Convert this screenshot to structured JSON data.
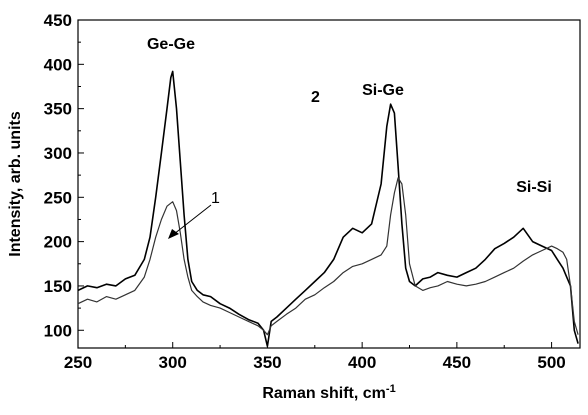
{
  "chart_data": {
    "type": "line",
    "xlabel": "Raman shift, cm",
    "xlabel_sup": "-1",
    "ylabel": "Intensity, arb. units",
    "xlim": [
      250,
      515
    ],
    "ylim": [
      80,
      450
    ],
    "x_ticks": [
      "250",
      "300",
      "350",
      "400",
      "450",
      "500"
    ],
    "y_ticks": [
      "100",
      "150",
      "200",
      "250",
      "300",
      "350",
      "400",
      "450"
    ],
    "grid": false,
    "annotations": {
      "ge_ge": "Ge-Ge",
      "si_ge": "Si-Ge",
      "si_si": "Si-Si",
      "curve_1": "1",
      "curve_2": "2"
    },
    "series": [
      {
        "name": "2",
        "color": "#000000",
        "x": [
          250,
          255,
          260,
          265,
          270,
          275,
          280,
          285,
          288,
          291,
          294,
          297,
          299,
          300,
          302,
          304,
          306,
          308,
          310,
          313,
          316,
          320,
          325,
          330,
          335,
          340,
          345,
          348,
          350,
          352,
          355,
          360,
          365,
          370,
          375,
          380,
          385,
          390,
          395,
          400,
          405,
          410,
          413,
          415,
          417,
          419,
          421,
          423,
          425,
          428,
          432,
          436,
          440,
          445,
          450,
          455,
          460,
          465,
          470,
          475,
          480,
          485,
          490,
          495,
          500,
          503,
          506,
          508,
          510,
          512,
          514
        ],
        "y": [
          145,
          150,
          148,
          152,
          150,
          158,
          162,
          180,
          205,
          250,
          300,
          350,
          385,
          392,
          350,
          290,
          230,
          180,
          155,
          145,
          140,
          138,
          130,
          125,
          118,
          112,
          108,
          100,
          82,
          110,
          115,
          125,
          135,
          145,
          155,
          165,
          180,
          205,
          215,
          210,
          220,
          265,
          330,
          355,
          345,
          285,
          220,
          170,
          155,
          150,
          158,
          160,
          165,
          162,
          160,
          165,
          170,
          180,
          192,
          198,
          205,
          215,
          200,
          195,
          190,
          180,
          170,
          160,
          150,
          100,
          85
        ]
      },
      {
        "name": "1",
        "color": "#333333",
        "x": [
          250,
          255,
          260,
          265,
          270,
          275,
          280,
          285,
          288,
          291,
          294,
          297,
          300,
          302,
          304,
          306,
          308,
          310,
          313,
          316,
          320,
          325,
          330,
          335,
          340,
          345,
          348,
          350,
          352,
          355,
          360,
          365,
          370,
          375,
          380,
          385,
          390,
          395,
          400,
          405,
          410,
          413,
          415,
          417,
          419,
          421,
          423,
          425,
          428,
          432,
          436,
          440,
          445,
          450,
          455,
          460,
          465,
          470,
          475,
          480,
          485,
          490,
          495,
          500,
          503,
          506,
          508,
          510,
          512,
          514
        ],
        "y": [
          130,
          135,
          132,
          138,
          135,
          140,
          145,
          160,
          180,
          205,
          225,
          240,
          245,
          235,
          210,
          180,
          160,
          145,
          138,
          132,
          128,
          125,
          120,
          115,
          110,
          105,
          100,
          95,
          105,
          110,
          118,
          125,
          135,
          140,
          148,
          155,
          165,
          172,
          175,
          180,
          185,
          195,
          230,
          255,
          272,
          265,
          230,
          175,
          150,
          145,
          148,
          150,
          155,
          152,
          150,
          152,
          155,
          160,
          165,
          170,
          178,
          185,
          190,
          195,
          192,
          188,
          180,
          150,
          110,
          95
        ]
      }
    ]
  }
}
